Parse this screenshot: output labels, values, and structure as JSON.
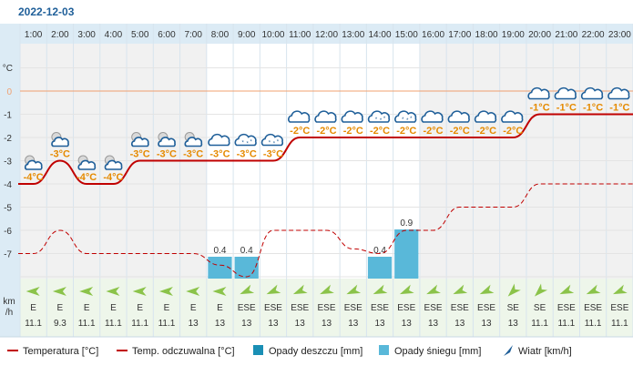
{
  "date_label": "2022-12-03",
  "temp_unit_label": "°C",
  "wind_unit_label": [
    "km",
    "/h"
  ],
  "colors": {
    "header_bg": "#dcebf5",
    "plot_bg_night": "#f1f1f1",
    "plot_bg_day": "#ffffff",
    "wind_row_bg": "#eef6ea",
    "temperature_line": "#c00000",
    "feels_like_line": "#c00000",
    "zero_line": "#f0a070",
    "rain_bar": "#1a8fb5",
    "snow_bar": "#59b8d9",
    "temp_label": "#e58a00",
    "wind_arrow": "#8bc34a",
    "date_text": "#1f5f99"
  },
  "chart_data": {
    "type": "line",
    "title": "2022-12-03",
    "x": [
      "1:00",
      "2:00",
      "3:00",
      "4:00",
      "5:00",
      "6:00",
      "7:00",
      "8:00",
      "9:00",
      "10:00",
      "11:00",
      "12:00",
      "13:00",
      "14:00",
      "15:00",
      "16:00",
      "17:00",
      "18:00",
      "19:00",
      "20:00",
      "21:00",
      "22:00",
      "23:00"
    ],
    "y_ticks": [
      "°C",
      "0",
      "-1",
      "-2",
      "-3",
      "-4",
      "-5",
      "-6",
      "-7"
    ],
    "ylim": [
      -8,
      1
    ],
    "series": [
      {
        "name": "Temperatura [°C]",
        "style": "solid",
        "values": [
          -4,
          -3,
          -4,
          -4,
          -3,
          -3,
          -3,
          -3,
          -3,
          -3,
          -2,
          -2,
          -2,
          -2,
          -2,
          -2,
          -2,
          -2,
          -2,
          -1,
          -1,
          -1,
          -1
        ]
      },
      {
        "name": "Temp. odczuwalna [°C]",
        "style": "dashed",
        "values": [
          -7,
          -6,
          -7,
          -7,
          -7,
          -7,
          -7,
          -7.5,
          -8,
          -6,
          -6,
          -6,
          -6.8,
          -7,
          -6,
          -6,
          -5,
          -5,
          -5,
          -4,
          -4,
          -4,
          -4
        ]
      }
    ],
    "temp_labels": [
      "-4°C",
      "-3°C",
      "-4°C",
      "-4°C",
      "-3°C",
      "-3°C",
      "-3°C",
      "-3°C",
      "-3°C",
      "-3°C",
      "-2°C",
      "-2°C",
      "-2°C",
      "-2°C",
      "-2°C",
      "-2°C",
      "-2°C",
      "-2°C",
      "-2°C",
      "-1°C",
      "-1°C",
      "-1°C",
      "-1°C"
    ],
    "weather_icons": [
      "sun-cloud-icon",
      "sun-cloud-icon",
      "sun-cloud-icon",
      "sun-cloud-icon",
      "sun-cloud-icon",
      "sun-cloud-icon",
      "sun-cloud-icon",
      "cloud-icon",
      "snow-cloud-icon",
      "snow-cloud-icon",
      "cloud-icon",
      "cloud-icon",
      "cloud-icon",
      "snow-cloud-icon",
      "snow-cloud-icon",
      "cloud-icon",
      "cloud-icon",
      "cloud-icon",
      "cloud-icon",
      "cloud-icon",
      "cloud-icon",
      "cloud-icon",
      "cloud-icon"
    ],
    "precip": {
      "snow_mm": [
        0,
        0,
        0,
        0,
        0,
        0,
        0,
        0.4,
        0.4,
        0,
        0,
        0,
        0,
        0.4,
        0.9,
        0,
        0,
        0,
        0,
        0,
        0,
        0,
        0
      ],
      "labels": [
        "",
        "",
        "",
        "",
        "",
        "",
        "",
        "0.4",
        "0.4",
        "",
        "",
        "",
        "",
        "0.4",
        "0.9",
        "",
        "",
        "",
        "",
        "",
        "",
        "",
        ""
      ]
    },
    "wind": {
      "direction": [
        "E",
        "E",
        "E",
        "E",
        "E",
        "E",
        "E",
        "E",
        "ESE",
        "ESE",
        "ESE",
        "ESE",
        "ESE",
        "ESE",
        "ESE",
        "ESE",
        "ESE",
        "ESE",
        "SE",
        "SE",
        "ESE",
        "ESE",
        "ESE"
      ],
      "speed": [
        "11.1",
        "9.3",
        "11.1",
        "11.1",
        "11.1",
        "11.1",
        "13",
        "13",
        "13",
        "13",
        "13",
        "13",
        "13",
        "13",
        "13",
        "13",
        "13",
        "13",
        "13",
        "11.1",
        "11.1",
        "11.1",
        "11.1"
      ]
    },
    "night_hours": [
      0,
      1,
      2,
      3,
      4,
      5,
      6,
      15,
      16,
      17,
      18,
      19,
      20,
      21,
      22
    ],
    "legend": {
      "position": "bottom",
      "items": [
        {
          "label": "Temperatura [°C]",
          "kind": "line"
        },
        {
          "label": "Temp. odczuwalna [°C]",
          "kind": "line"
        },
        {
          "label": "Opady deszczu [mm]",
          "kind": "rain-square"
        },
        {
          "label": "Opady śniegu [mm]",
          "kind": "snow-square"
        },
        {
          "label": "Wiatr [km/h]",
          "kind": "wind-arrow"
        }
      ]
    }
  }
}
